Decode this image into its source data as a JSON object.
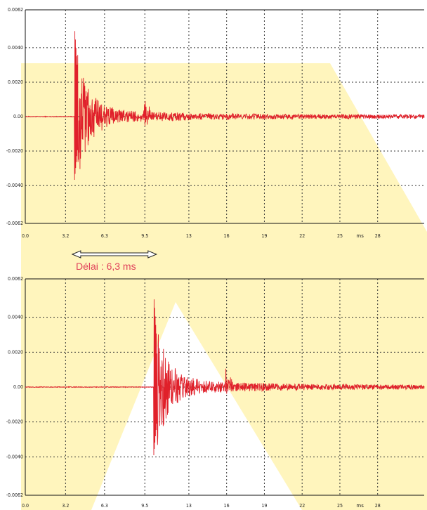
{
  "chart_data": [
    {
      "type": "line",
      "title": "",
      "xlabel": "",
      "ylabel": "",
      "x_unit": "ms",
      "xlim": [
        0,
        31.7
      ],
      "ylim": [
        -0.0062,
        0.0062
      ],
      "x_ticks": [
        "0.0",
        "3.2",
        "6.3",
        "9.5",
        "13",
        "16",
        "19",
        "22",
        "25",
        "28"
      ],
      "y_ticks": [
        "0.0062",
        "0.0040",
        "0.0020",
        "0.00",
        "-0.0020",
        "-0.0040",
        "-0.0062"
      ],
      "grid": true,
      "series_color": "#e0202a",
      "signal": {
        "onset_ms": 3.9,
        "peak_max": 0.0054,
        "peak_min": -0.0038,
        "second_burst_ms": 9.4,
        "second_burst_amp": 0.0015
      }
    },
    {
      "type": "line",
      "title": "",
      "xlabel": "",
      "ylabel": "",
      "x_unit": "ms",
      "xlim": [
        0,
        31.7
      ],
      "ylim": [
        -0.0062,
        0.0062
      ],
      "x_ticks": [
        "0.0",
        "3.2",
        "6.3",
        "9.5",
        "13",
        "16",
        "19",
        "22",
        "25",
        "28"
      ],
      "y_ticks": [
        "0.0062",
        "0.0040",
        "0.0020",
        "0.00",
        "-0.0020",
        "-0.0040",
        "-0.0062"
      ],
      "grid": true,
      "series_color": "#e0202a",
      "signal": {
        "onset_ms": 10.2,
        "peak_max": 0.0054,
        "peak_min": -0.004,
        "second_burst_ms": 15.9,
        "second_burst_amp": 0.0013
      }
    }
  ],
  "annotation": {
    "label": "Délai : 6,3 ms",
    "from_ms": 3.9,
    "to_ms": 10.2
  },
  "background": {
    "watermark_color": "#fff3b0"
  }
}
